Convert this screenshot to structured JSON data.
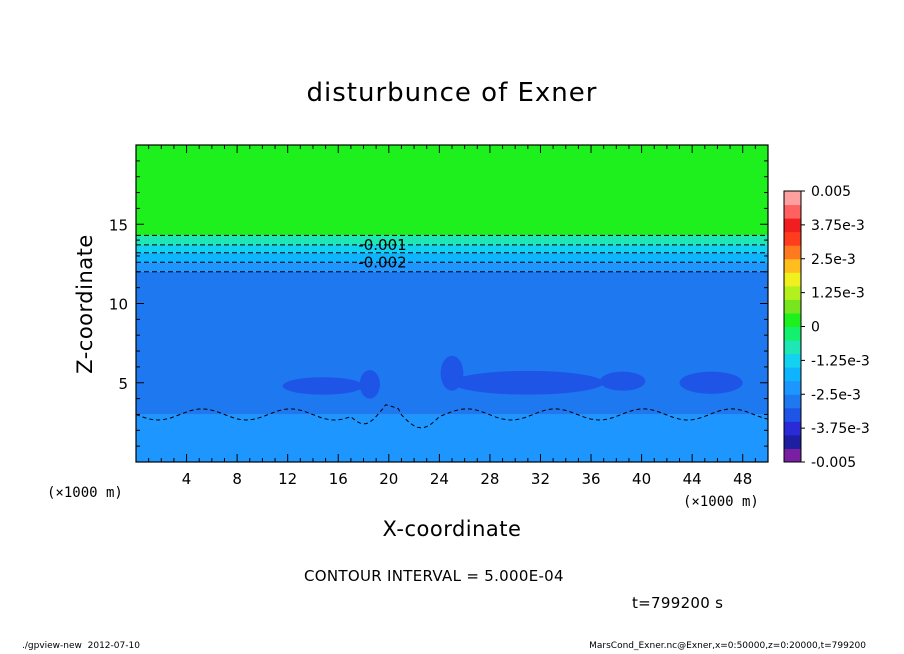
{
  "chart_data": {
    "type": "heatmap",
    "title": "disturbunce of Exner",
    "xlabel": "X-coordinate",
    "ylabel": "Z-coordinate",
    "x_unit_left": "(×1000 m)",
    "x_unit_right": "(×1000 m)",
    "xlim": [
      0,
      50
    ],
    "ylim": [
      0,
      20
    ],
    "xticks": [
      4,
      8,
      12,
      16,
      20,
      24,
      28,
      32,
      36,
      40,
      44,
      48
    ],
    "yticks": [
      5,
      10,
      15
    ],
    "colorbar": {
      "min": -0.005,
      "max": 0.005,
      "tick_labels": [
        "0.005",
        "3.75e-3",
        "2.5e-3",
        "1.25e-3",
        "0",
        "-1.25e-3",
        "-2.5e-3",
        "-3.75e-3",
        "-0.005"
      ],
      "colors": [
        "#7a1fa2",
        "#1e1ea0",
        "#2a2ad6",
        "#1e55e6",
        "#1e78f0",
        "#1e96ff",
        "#0fb4ff",
        "#13d2f0",
        "#1ee6b4",
        "#13f06e",
        "#1ef01e",
        "#78e61e",
        "#b4f01e",
        "#f0f01e",
        "#ffbe1e",
        "#ff7a1e",
        "#ff3c1e",
        "#f01e1e",
        "#ff6060",
        "#ffa0a0"
      ]
    },
    "contour_labels": [
      {
        "text": "-0.001",
        "x": 19.5,
        "z": 13.7
      },
      {
        "text": "-0.002",
        "x": 19.5,
        "z": 12.6
      }
    ],
    "background_level": "0",
    "bands": [
      {
        "from": 14.3,
        "to": 20,
        "level": 0
      },
      {
        "from": 13.7,
        "to": 14.3,
        "level": -0.00075
      },
      {
        "from": 13.2,
        "to": 13.7,
        "level": -0.00125
      },
      {
        "from": 12.6,
        "to": 13.2,
        "level": -0.00175
      },
      {
        "from": 12.0,
        "to": 12.6,
        "level": -0.00225
      },
      {
        "from": 3.0,
        "to": 12.0,
        "level": -0.0029
      },
      {
        "from": 0,
        "to": 3.0,
        "level": -0.0024
      }
    ]
  },
  "contour_interval": "CONTOUR INTERVAL = 5.000E-04",
  "time_label": "t=799200 s",
  "footer_left": "./gpview-new  2012-07-10",
  "footer_right": "MarsCond_Exner.nc@Exner,x=0:50000,z=0:20000,t=799200"
}
